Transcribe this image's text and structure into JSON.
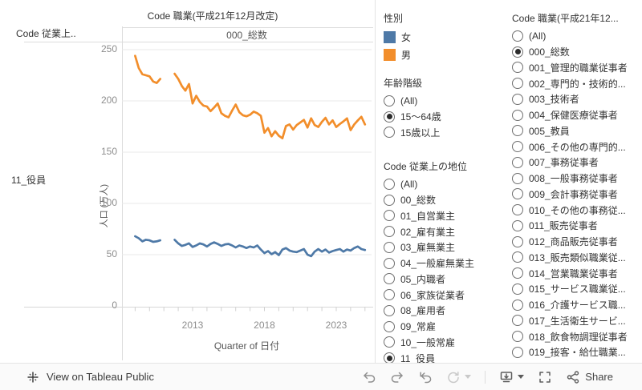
{
  "sheet": {
    "title": "Code 職業(平成21年12月改定)",
    "row_field": "Code 従業上..",
    "column_header": "000_総数",
    "row_label": "11_役員",
    "y_axis_title": "人口 (万人)",
    "x_axis_title": "Quarter of 日付"
  },
  "chart_data": {
    "type": "line",
    "title": "Code 職業(平成21年12月改定)",
    "subtitle": "000_総数",
    "xlabel": "Quarter of 日付",
    "ylabel": "人口 (万人)",
    "ylim": [
      0,
      250
    ],
    "yticks": [
      0,
      50,
      100,
      150,
      200,
      250
    ],
    "xticks": [
      2013,
      2018,
      2023
    ],
    "legend_position": "right",
    "grid": true,
    "x": [
      2009,
      2009.25,
      2009.5,
      2009.75,
      2010,
      2010.25,
      2010.5,
      2010.75,
      2011,
      2011.25,
      2011.5,
      2011.75,
      2012,
      2012.25,
      2012.5,
      2012.75,
      2013,
      2013.25,
      2013.5,
      2013.75,
      2014,
      2014.25,
      2014.5,
      2014.75,
      2015,
      2015.25,
      2015.5,
      2015.75,
      2016,
      2016.25,
      2016.5,
      2016.75,
      2017,
      2017.25,
      2017.5,
      2017.75,
      2018,
      2018.25,
      2018.5,
      2018.75,
      2019,
      2019.25,
      2019.5,
      2019.75,
      2020,
      2020.25,
      2020.5,
      2020.75,
      2021,
      2021.25,
      2021.5,
      2021.75,
      2022,
      2022.25,
      2022.5,
      2022.75,
      2023,
      2023.25,
      2023.5,
      2023.75,
      2024,
      2024.25,
      2024.5,
      2024.75,
      2025
    ],
    "series": [
      {
        "name": "女",
        "color": "#4e79a7",
        "values": [
          68,
          66,
          63,
          64.5,
          64,
          62.5,
          63,
          64,
          null,
          null,
          null,
          64.5,
          61,
          58.5,
          59.5,
          61,
          57.5,
          59,
          61,
          60,
          58,
          60.5,
          62,
          60.5,
          58.5,
          60,
          60.5,
          59,
          57,
          59,
          58,
          56.5,
          58,
          57,
          59,
          55,
          51.5,
          53.5,
          50.5,
          52.5,
          49.5,
          55,
          56.5,
          54,
          53,
          52.5,
          54,
          55.5,
          50,
          48.5,
          53,
          55.5,
          53,
          55,
          52,
          53.5,
          54.5,
          55.5,
          53,
          55,
          54,
          56.5,
          58,
          55.5,
          54.5
        ]
      },
      {
        "name": "男",
        "color": "#f28e2b",
        "values": [
          244,
          232,
          226,
          225,
          224,
          219,
          217.5,
          221.5,
          null,
          null,
          null,
          226.5,
          221.5,
          214.5,
          210,
          216.5,
          197.5,
          205,
          199,
          195.5,
          194.5,
          190,
          193.5,
          197.5,
          188,
          185.5,
          184,
          190.5,
          196.5,
          189,
          186,
          185,
          186.5,
          189.5,
          188,
          185.5,
          169,
          173.5,
          165.5,
          170.5,
          166,
          163.5,
          175.5,
          177,
          172,
          176.5,
          179,
          181.5,
          174,
          183,
          176.5,
          174.5,
          179.5,
          183.5,
          177,
          181,
          174.5,
          177.5,
          180,
          183,
          171.5,
          177,
          181,
          184.5,
          177
        ]
      }
    ]
  },
  "legend": {
    "title": "性別",
    "items": [
      {
        "label": "女",
        "color": "#4e79a7"
      },
      {
        "label": "男",
        "color": "#f28e2b"
      }
    ]
  },
  "filters": [
    {
      "title": "年齢階級",
      "options": [
        "(All)",
        "15〜64歳",
        "15歳以上"
      ],
      "selected": 1
    },
    {
      "title": "Code 従業上の地位",
      "options": [
        "(All)",
        "00_総数",
        "01_自営業主",
        "02_雇有業主",
        "03_雇無業主",
        "04_一般雇無業主",
        "05_内職者",
        "06_家族従業者",
        "08_雇用者",
        "09_常雇",
        "10_一般常雇",
        "11_役員"
      ],
      "selected": 11
    },
    {
      "title": "Code 職業(平成21年12...",
      "options": [
        "(All)",
        "000_総数",
        "001_管理的職業従事者",
        "002_専門的・技術的...",
        "003_技術者",
        "004_保健医療従事者",
        "005_教員",
        "006_その他の専門的...",
        "007_事務従事者",
        "008_一般事務従事者",
        "009_会計事務従事者",
        "010_その他の事務従...",
        "011_販売従事者",
        "012_商品販売従事者",
        "013_販売類似職業従...",
        "014_営業職業従事者",
        "015_サービス職業従...",
        "016_介護サービス職...",
        "017_生活衛生サービ...",
        "018_飲食物調理従事者",
        "019_接客・給仕職業..."
      ],
      "selected": 1
    }
  ],
  "toolbar": {
    "view_label": "View on Tableau Public",
    "share_label": "Share"
  }
}
